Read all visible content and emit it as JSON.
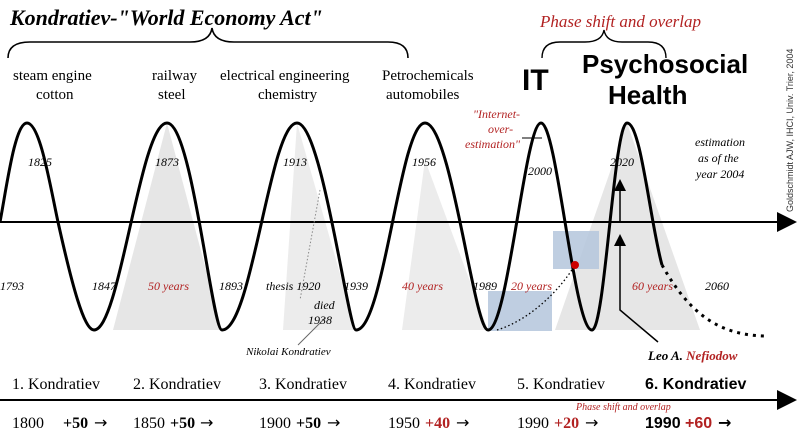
{
  "title": "Kondratiev-\"World Economy Act\"",
  "phase_shift_heading": "Phase shift and overlap",
  "wave_labels": [
    {
      "line1": "steam engine",
      "line2": "cotton"
    },
    {
      "line1": "railway",
      "line2": "steel"
    },
    {
      "line1": "electrical engineering",
      "line2": "chemistry"
    },
    {
      "line1": "Petrochemicals",
      "line2": "automobiles"
    }
  ],
  "it_label": "IT",
  "psychosocial_line1": "Psychosocial",
  "psychosocial_line2": "Health",
  "peak_years": [
    "1825",
    "1873",
    "1913",
    "1956",
    "2000",
    "2020"
  ],
  "trough_years": [
    "1793",
    "1847",
    "1893",
    "1939",
    "1989",
    "2060"
  ],
  "durations": [
    "50 years",
    "40 years",
    "20 years",
    "60 years"
  ],
  "thesis_label": "thesis 1920",
  "died_line1": "died",
  "died_line2": "1938",
  "nikolai": "Nikolai Kondratiev",
  "internet_line1": "\"Internet-",
  "internet_line2": "over-",
  "internet_line3": "estimation\"",
  "estimation_line1": "estimation",
  "estimation_line2": "as of the",
  "estimation_line3": "year 2004",
  "credit": "Goldschmidt AJW, IHCI, Univ. Trier, 2004",
  "leo_name": "Leo A.",
  "leo_surname": "Nefiodow",
  "cycle_names": [
    "1. Kondratiev",
    "2. Kondratiev",
    "3. Kondratiev",
    "4. Kondratiev",
    "5. Kondratiev",
    "6. Kondratiev"
  ],
  "bottom_years": [
    "1800",
    "1850",
    "1900",
    "1950",
    "1990",
    "1990"
  ],
  "bottom_increments": [
    "+50",
    "+50",
    "+50",
    "+40",
    "+20",
    "+60"
  ],
  "phase_shift_small": "Phase shift and overlap",
  "arrow_glyph": "→",
  "colors": {
    "accent_red": "#b22222",
    "wave": "#000000",
    "shade": "#e6e6e6",
    "blue_box": "#b4c6dc"
  }
}
